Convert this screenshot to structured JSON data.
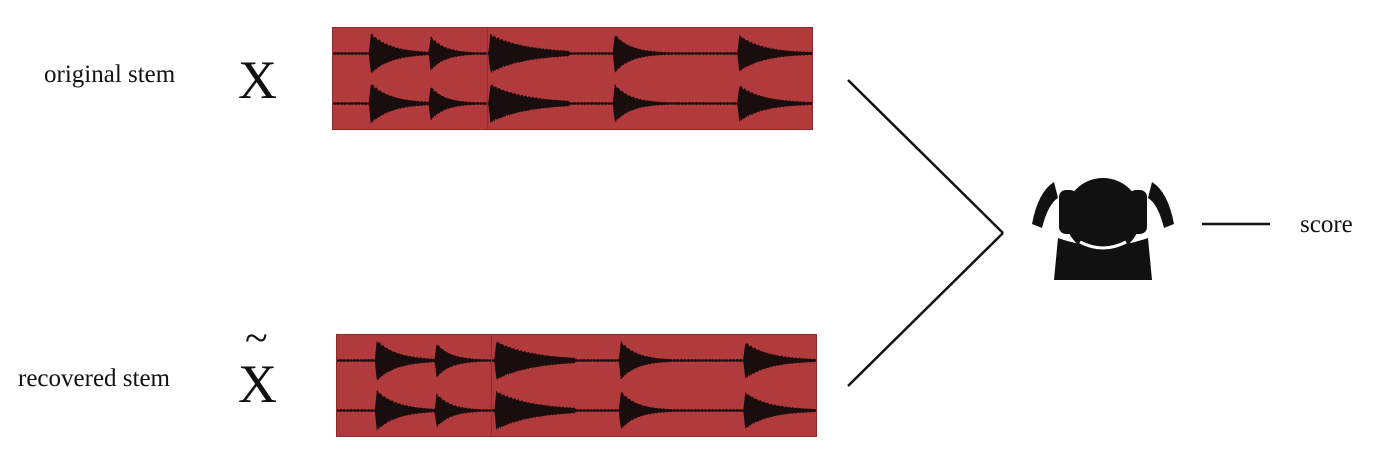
{
  "original": {
    "label": "original stem",
    "symbol": "X"
  },
  "recovered": {
    "label": "recovered stem",
    "symbol": "X",
    "accent": "~"
  },
  "output": {
    "label": "score"
  },
  "icons": {
    "listener": "headphones-listener-icon"
  },
  "colors": {
    "waveform_background": "#b13a3d",
    "waveform_trace": "#1a0d0d",
    "lines": "#111111"
  }
}
